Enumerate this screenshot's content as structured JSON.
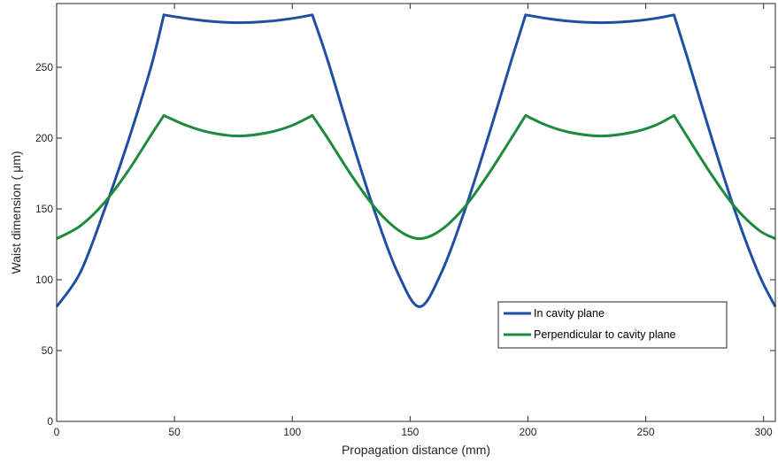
{
  "chart_data": {
    "type": "line",
    "xlabel": "Propagation distance (mm)",
    "ylabel": "Waist dimension (  μm)",
    "xlim": [
      0,
      305
    ],
    "ylim": [
      0,
      295
    ],
    "xticks": [
      0,
      50,
      100,
      150,
      200,
      250,
      300
    ],
    "yticks": [
      0,
      50,
      100,
      150,
      200,
      250
    ],
    "grid": false,
    "legend_position": "lower-right",
    "series": [
      {
        "name": "In cavity plane",
        "color": "#1f4fa3",
        "x": [
          0,
          10,
          20,
          30,
          40,
          45.5,
          55,
          65,
          77,
          90,
          100,
          108.5,
          115,
          125,
          135,
          145,
          154,
          163,
          173,
          183,
          193,
          199,
          208,
          218,
          231,
          244,
          254,
          262,
          268,
          278,
          288,
          298,
          305
        ],
        "y": [
          81,
          105,
          148,
          196,
          250,
          287,
          284.5,
          282.5,
          281.5,
          282.5,
          284.5,
          287,
          255,
          200,
          148,
          104,
          81,
          104,
          148,
          200,
          255,
          287,
          284.5,
          282.5,
          281.5,
          282.5,
          284.5,
          287,
          255,
          200,
          148,
          104,
          81
        ]
      },
      {
        "name": "Perpendicular to cavity plane",
        "color": "#1e8a3f",
        "x": [
          0,
          10,
          20,
          30,
          40,
          45.5,
          55,
          65,
          77,
          90,
          100,
          108.5,
          115,
          125,
          135,
          145,
          154,
          163,
          173,
          183,
          193,
          199,
          208,
          218,
          231,
          244,
          254,
          262,
          268,
          278,
          288,
          298,
          305
        ],
        "y": [
          129,
          138,
          154,
          176,
          202,
          216,
          209,
          204,
          201.5,
          204,
          209,
          216,
          200,
          174,
          151,
          135,
          129,
          135,
          151,
          174,
          200,
          216,
          209,
          204,
          201.5,
          204,
          209,
          216,
          200,
          174,
          151,
          135,
          129
        ]
      }
    ]
  }
}
